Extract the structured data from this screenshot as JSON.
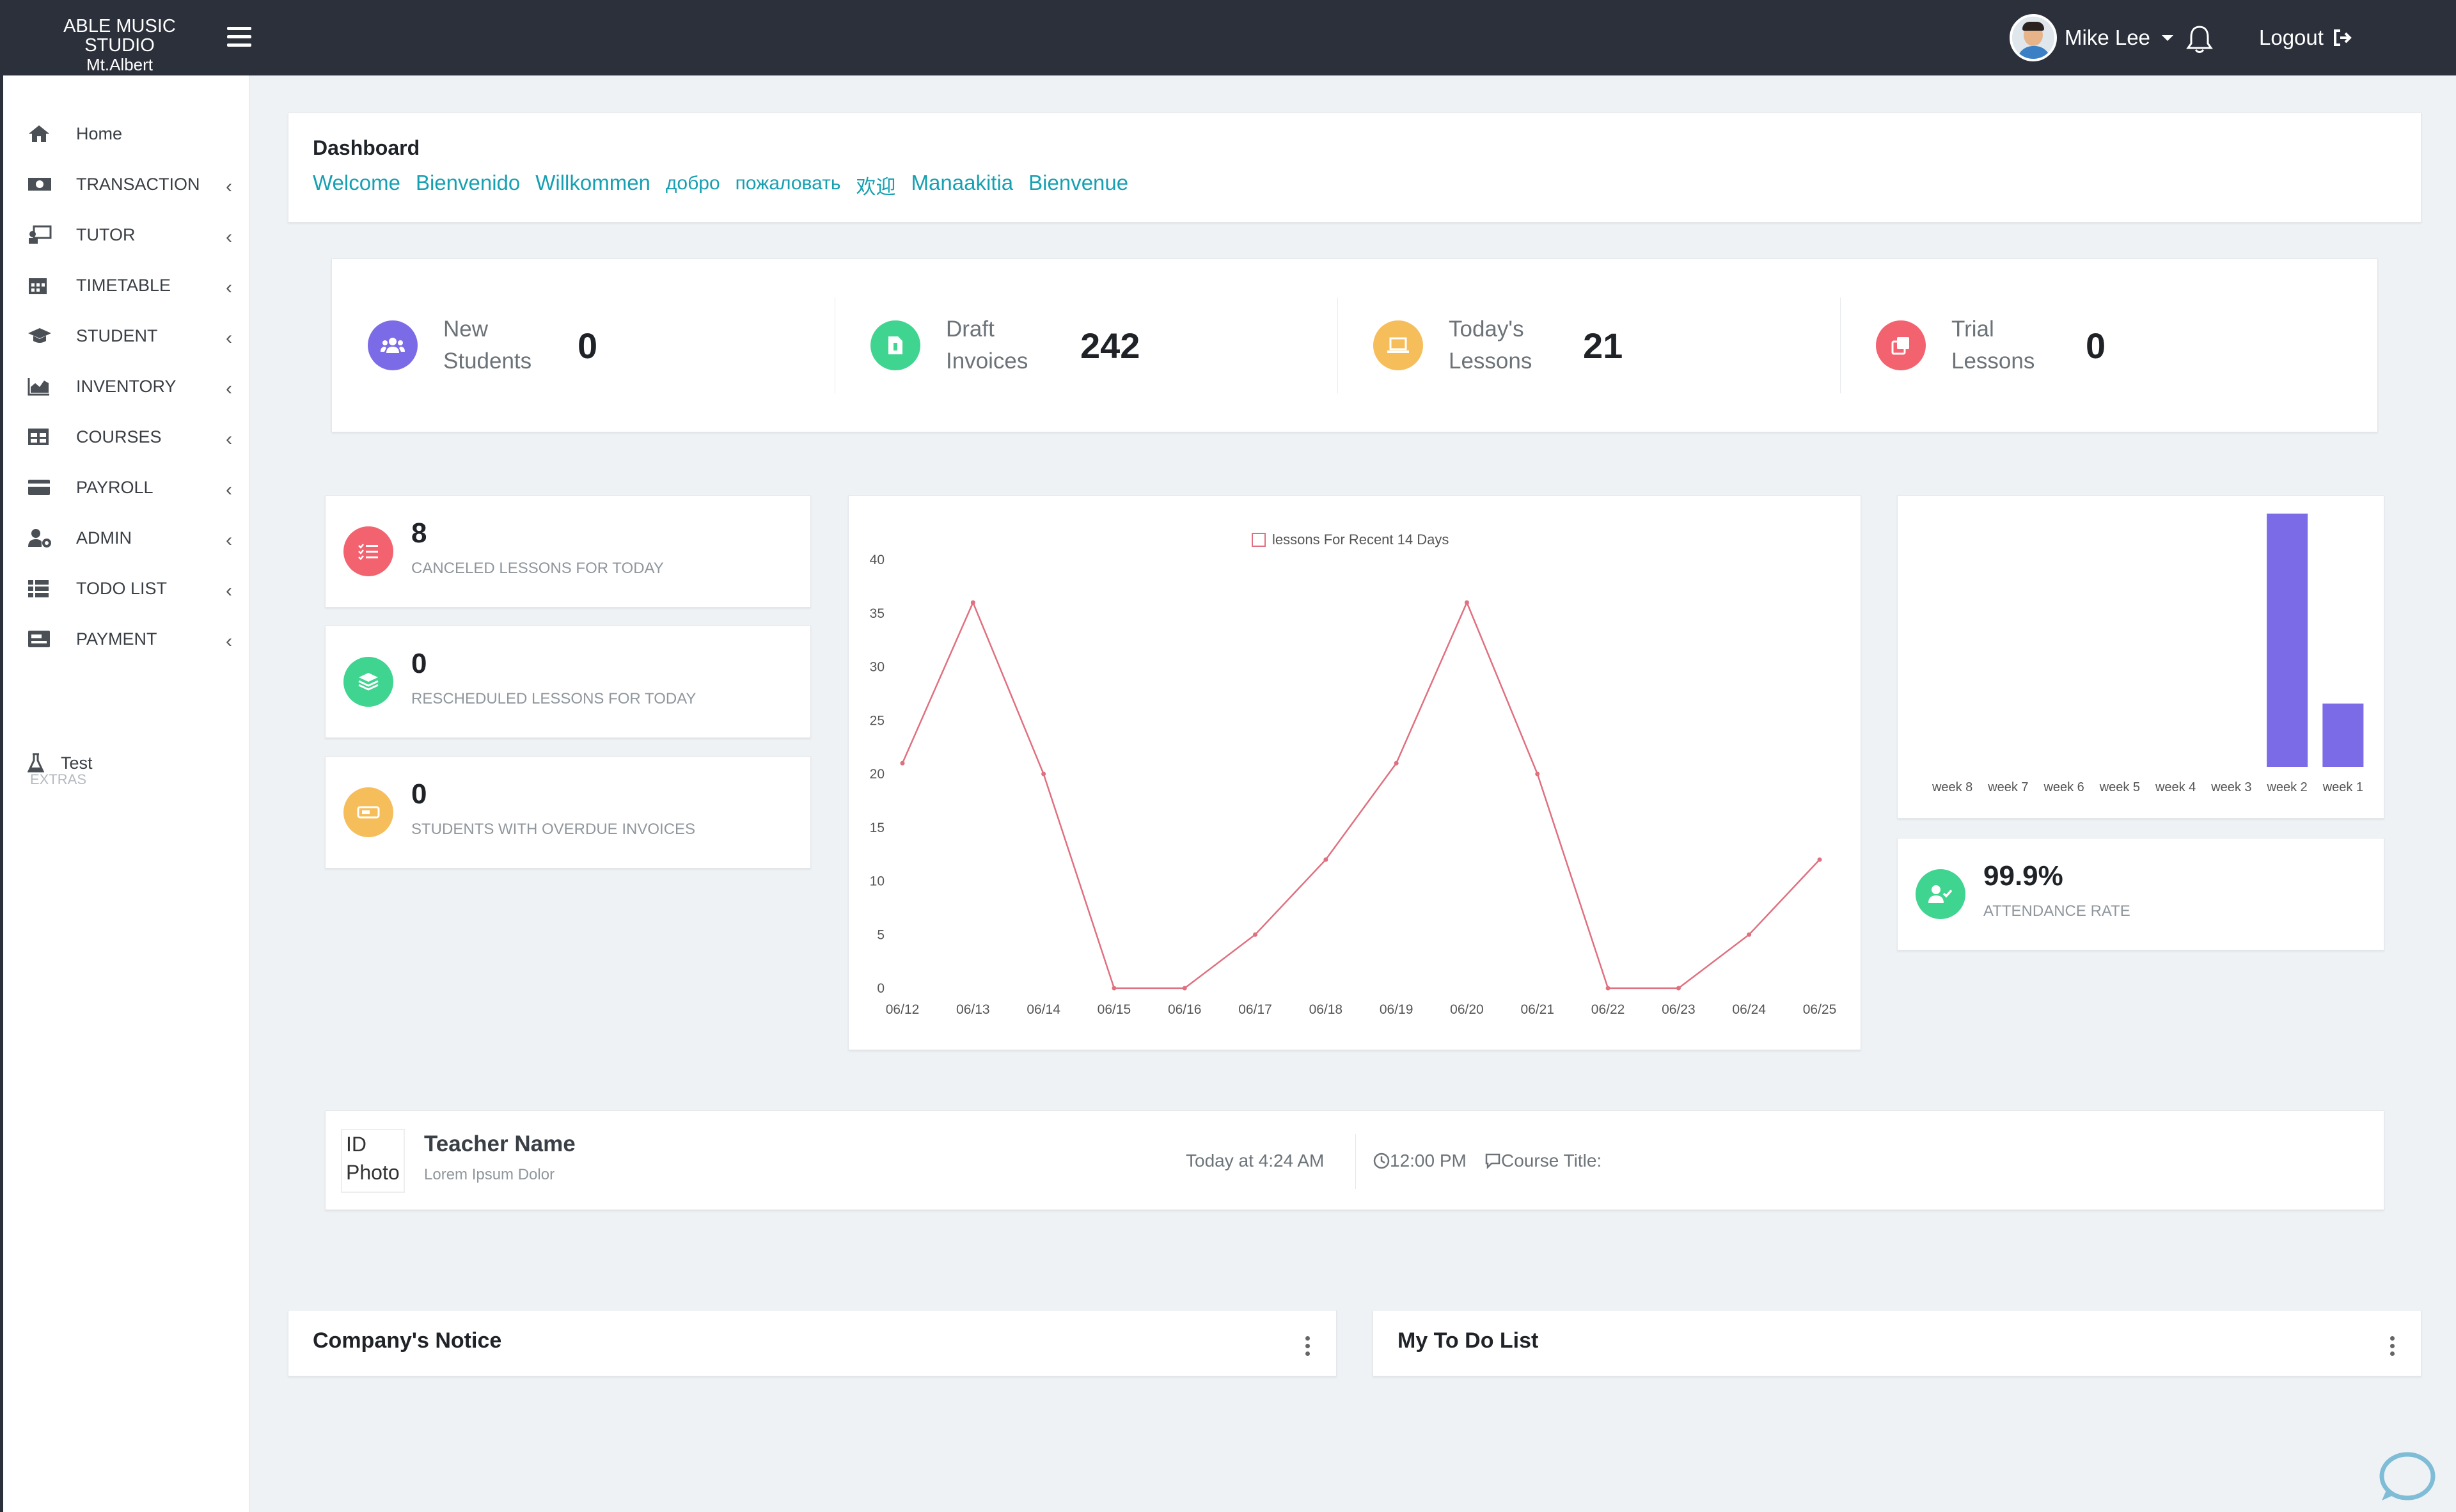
{
  "brand": {
    "line1": "ABLE MUSIC STUDIO",
    "line2": "Mt.Albert"
  },
  "header": {
    "user_name": "Mike Lee",
    "logout_label": "Logout"
  },
  "sidebar": {
    "items": [
      {
        "label": "Home",
        "icon": "home-icon",
        "has_submenu": false
      },
      {
        "label": "TRANSACTION",
        "icon": "money-icon",
        "has_submenu": true
      },
      {
        "label": "TUTOR",
        "icon": "teacher-icon",
        "has_submenu": true
      },
      {
        "label": "TIMETABLE",
        "icon": "calendar-icon",
        "has_submenu": true
      },
      {
        "label": "STUDENT",
        "icon": "graduation-cap-icon",
        "has_submenu": true
      },
      {
        "label": "INVENTORY",
        "icon": "chart-icon",
        "has_submenu": true
      },
      {
        "label": "COURSES",
        "icon": "table-icon",
        "has_submenu": true
      },
      {
        "label": "PAYROLL",
        "icon": "credit-card-icon",
        "has_submenu": true
      },
      {
        "label": "ADMIN",
        "icon": "users-cog-icon",
        "has_submenu": true
      },
      {
        "label": "TODO LIST",
        "icon": "list-icon",
        "has_submenu": true
      },
      {
        "label": "PAYMENT",
        "icon": "payment-icon",
        "has_submenu": true
      }
    ],
    "chevron": "‹",
    "extras_label": "EXTRAS",
    "extras_item": "Test"
  },
  "dashboard": {
    "title": "Dashboard",
    "welcome": [
      "Welcome",
      "Bienvenido",
      "Willkommen",
      "добро",
      "пожаловать",
      "欢迎",
      "Manaakitia",
      "Bienvenue"
    ]
  },
  "stats": [
    {
      "line1": "New",
      "line2": "Students",
      "value": "0",
      "color": "#7b6be6",
      "icon": "users-icon"
    },
    {
      "line1": "Draft",
      "line2": "Invoices",
      "value": "242",
      "color": "#3fd48f",
      "icon": "file-icon"
    },
    {
      "line1": "Today's",
      "line2": "Lessons",
      "value": "21",
      "color": "#f6bd5b",
      "icon": "laptop-icon"
    },
    {
      "line1": "Trial",
      "line2": "Lessons",
      "value": "0",
      "color": "#f2626f",
      "icon": "copy-icon"
    }
  ],
  "mini_cards": [
    {
      "value": "8",
      "label": "CANCELED LESSONS FOR TODAY",
      "color": "#f2626f",
      "icon": "list-check-icon"
    },
    {
      "value": "0",
      "label": "RESCHEDULED LESSONS FOR TODAY",
      "color": "#3fd48f",
      "icon": "layers-icon"
    },
    {
      "value": "0",
      "label": "STUDENTS WITH OVERDUE INVOICES",
      "color": "#f6bd5b",
      "icon": "ticket-icon"
    }
  ],
  "attendance": {
    "value": "99.9%",
    "label": "ATTENDANCE RATE",
    "color": "#3fd48f",
    "icon": "user-check-icon"
  },
  "teacher": {
    "photo_alt": "ID Photo",
    "name": "Teacher Name",
    "subtitle": "Lorem Ipsum Dolor",
    "time_label": "Today at 4:24 AM",
    "clock_time": "12:00 PM",
    "course_label": "Course Title:"
  },
  "panels": {
    "notice_title": "Company's Notice",
    "todo_title": "My To Do List"
  },
  "chart_data": [
    {
      "type": "line",
      "legend": [
        "lessons For Recent 14 Days"
      ],
      "categories": [
        "06/12",
        "06/13",
        "06/14",
        "06/15",
        "06/16",
        "06/17",
        "06/18",
        "06/19",
        "06/20",
        "06/21",
        "06/22",
        "06/23",
        "06/24",
        "06/25"
      ],
      "series": [
        {
          "name": "lessons For Recent 14 Days",
          "values": [
            21,
            36,
            20,
            0,
            0,
            5,
            12,
            21,
            36,
            20,
            0,
            0,
            5,
            12
          ],
          "color": "#e07080"
        }
      ],
      "ylim": [
        0,
        40
      ],
      "yticks": [
        0,
        5,
        10,
        15,
        20,
        25,
        30,
        35,
        40
      ],
      "grid": false,
      "legend_position": "top-center"
    },
    {
      "type": "bar",
      "categories": [
        "week 8",
        "week 7",
        "week 6",
        "week 5",
        "week 4",
        "week 3",
        "week 2",
        "week 1"
      ],
      "values": [
        0,
        0,
        0,
        0,
        0,
        0,
        100,
        25
      ],
      "color": "#7b6be6",
      "grid": false
    }
  ]
}
